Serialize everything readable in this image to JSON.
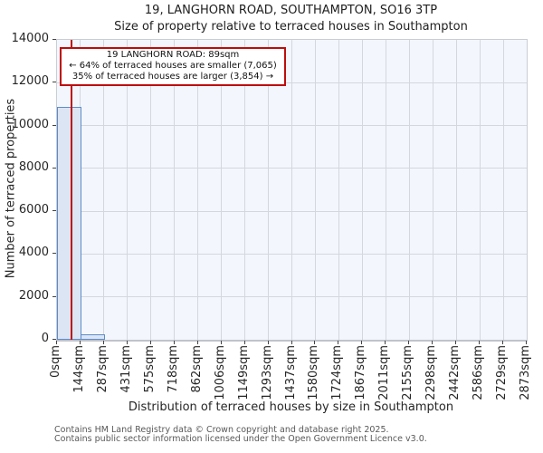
{
  "title": "19, LANGHORN ROAD, SOUTHAMPTON, SO16 3TP",
  "subtitle": "Size of property relative to terraced houses in Southampton",
  "annotation": {
    "line1": "19 LANGHORN ROAD: 89sqm",
    "line2": "← 64% of terraced houses are smaller (7,065)",
    "line3": "35% of terraced houses are larger (3,854) →"
  },
  "footer": {
    "line1": "Contains HM Land Registry data © Crown copyright and database right 2025.",
    "line2": "Contains public sector information licensed under the Open Government Licence v3.0."
  },
  "chart_data": {
    "type": "bar",
    "title": "19, LANGHORN ROAD, SOUTHAMPTON, SO16 3TP — Size of property relative to terraced houses in Southampton",
    "xlabel": "Distribution of terraced houses by size in Southampton",
    "ylabel": "Number of terraced properties",
    "x_tick_labels": [
      "0sqm",
      "144sqm",
      "287sqm",
      "431sqm",
      "575sqm",
      "718sqm",
      "862sqm",
      "1006sqm",
      "1149sqm",
      "1293sqm",
      "1437sqm",
      "1580sqm",
      "1724sqm",
      "1867sqm",
      "2011sqm",
      "2155sqm",
      "2298sqm",
      "2442sqm",
      "2586sqm",
      "2729sqm",
      "2873sqm"
    ],
    "bin_edges_sqm": [
      0,
      144,
      287,
      431,
      575,
      718,
      862,
      1006,
      1149,
      1293,
      1437,
      1580,
      1724,
      1867,
      2011,
      2155,
      2298,
      2442,
      2586,
      2729,
      2873
    ],
    "values": [
      10850,
      250,
      0,
      0,
      0,
      0,
      0,
      0,
      0,
      0,
      0,
      0,
      0,
      0,
      0,
      0,
      0,
      0,
      0,
      0
    ],
    "x_max_sqm": 2873,
    "y_ticks": [
      0,
      2000,
      4000,
      6000,
      8000,
      10000,
      12000,
      14000
    ],
    "ylim": [
      0,
      14000
    ],
    "marker_sqm": 89,
    "grid": "on",
    "legend": "none",
    "colors": {
      "bar_fill": "#dbe5f3",
      "bar_border": "#5e8bc8",
      "marker_line": "#bd0d0d",
      "annotation_border": "#bd0d0d",
      "annotation_bg": "#ffffff",
      "plot_bg": "#f3f6fc",
      "grid": "#d4d7de"
    }
  }
}
